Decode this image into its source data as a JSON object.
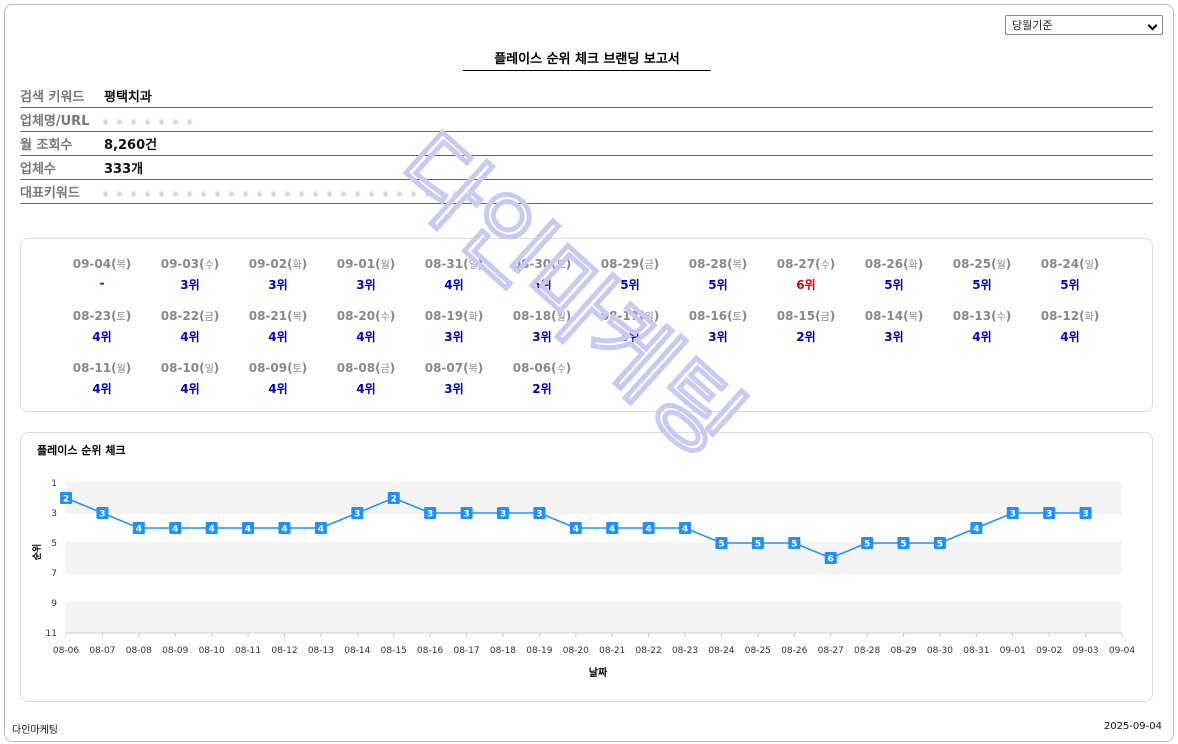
{
  "header": {
    "select": "당월기준",
    "title": "플레이스 순위 체크 브랜딩 보고서"
  },
  "info": [
    {
      "label": "검색 키워드",
      "value": "평택치과"
    },
    {
      "label": "업체명/URL"
    },
    {
      "label": "월 조회수",
      "value": "8,260건"
    },
    {
      "label": "업체수",
      "value": "333개"
    },
    {
      "label": "대표키워드"
    }
  ],
  "ranks": [
    {
      "date": "09-04",
      "day": "목",
      "rank": "-"
    },
    {
      "date": "09-03",
      "day": "수",
      "rank": "3위"
    },
    {
      "date": "09-02",
      "day": "화",
      "rank": "3위"
    },
    {
      "date": "09-01",
      "day": "월",
      "rank": "3위"
    },
    {
      "date": "08-31",
      "day": "일",
      "rank": "4위"
    },
    {
      "date": "08-30",
      "day": "토",
      "rank": "5위"
    },
    {
      "date": "08-29",
      "day": "금",
      "rank": "5위"
    },
    {
      "date": "08-28",
      "day": "목",
      "rank": "5위"
    },
    {
      "date": "08-27",
      "day": "수",
      "rank": "6위",
      "color": "#e00000"
    },
    {
      "date": "08-26",
      "day": "화",
      "rank": "5위"
    },
    {
      "date": "08-25",
      "day": "월",
      "rank": "5위"
    },
    {
      "date": "08-24",
      "day": "일",
      "rank": "5위"
    },
    {
      "date": "08-23",
      "day": "토",
      "rank": "4위"
    },
    {
      "date": "08-22",
      "day": "금",
      "rank": "4위"
    },
    {
      "date": "08-21",
      "day": "목",
      "rank": "4위"
    },
    {
      "date": "08-20",
      "day": "수",
      "rank": "4위"
    },
    {
      "date": "08-19",
      "day": "화",
      "rank": "3위"
    },
    {
      "date": "08-18",
      "day": "월",
      "rank": "3위"
    },
    {
      "date": "08-17",
      "day": "일",
      "rank": "3위"
    },
    {
      "date": "08-16",
      "day": "토",
      "rank": "3위"
    },
    {
      "date": "08-15",
      "day": "금",
      "rank": "2위"
    },
    {
      "date": "08-14",
      "day": "목",
      "rank": "3위"
    },
    {
      "date": "08-13",
      "day": "수",
      "rank": "4위"
    },
    {
      "date": "08-12",
      "day": "화",
      "rank": "4위"
    },
    {
      "date": "08-11",
      "day": "월",
      "rank": "4위"
    },
    {
      "date": "08-10",
      "day": "일",
      "rank": "4위"
    },
    {
      "date": "08-09",
      "day": "토",
      "rank": "4위"
    },
    {
      "date": "08-08",
      "day": "금",
      "rank": "4위"
    },
    {
      "date": "08-07",
      "day": "목",
      "rank": "3위"
    },
    {
      "date": "08-06",
      "day": "수",
      "rank": "2위"
    }
  ],
  "chart_data": {
    "type": "line",
    "title": "플레이스 순위 체크",
    "x_label": "날짜",
    "y_label": "순위",
    "categories": [
      "08-06",
      "08-07",
      "08-08",
      "08-09",
      "08-10",
      "08-11",
      "08-12",
      "08-13",
      "08-14",
      "08-15",
      "08-16",
      "08-17",
      "08-18",
      "08-19",
      "08-20",
      "08-21",
      "08-22",
      "08-23",
      "08-24",
      "08-25",
      "08-26",
      "08-27",
      "08-28",
      "08-29",
      "08-30",
      "08-31",
      "09-01",
      "09-02",
      "09-03",
      "09-04"
    ],
    "series": [
      {
        "name": "순위",
        "color": "#1e90ff",
        "values": [
          2,
          3,
          4,
          4,
          4,
          4,
          4,
          4,
          3,
          2,
          3,
          3,
          3,
          3,
          4,
          4,
          4,
          4,
          5,
          5,
          5,
          6,
          5,
          5,
          5,
          4,
          3,
          3,
          3,
          null
        ]
      }
    ],
    "ylim": [
      1,
      11
    ],
    "yticks": [
      1,
      3,
      5,
      7,
      9,
      11
    ],
    "y_reversed": true
  },
  "watermark": "다인마케팅",
  "footer": {
    "left": "다인마케팅",
    "right": "2025-09-04"
  }
}
